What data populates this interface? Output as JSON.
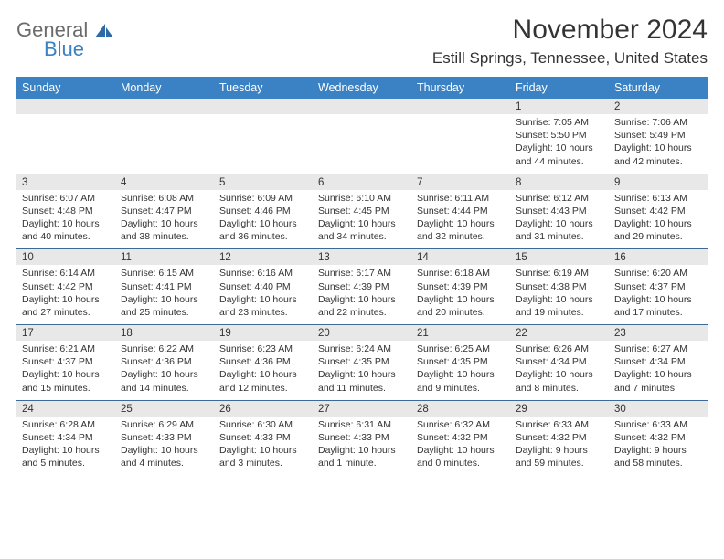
{
  "logo": {
    "word1": "General",
    "word2": "Blue"
  },
  "title": "November 2024",
  "location": "Estill Springs, Tennessee, United States",
  "colors": {
    "header_bg": "#3b82c4",
    "header_text": "#ffffff",
    "daynum_bg": "#e8e8e8",
    "row_divider": "#3b6a9a",
    "text": "#333333",
    "logo_gray": "#6b6b6b",
    "logo_blue": "#3b82c4",
    "background": "#ffffff"
  },
  "typography": {
    "title_fontsize": 30,
    "location_fontsize": 17,
    "header_fontsize": 12.5,
    "daynum_fontsize": 11.5,
    "cell_fontsize": 10.5,
    "font_family": "Arial"
  },
  "day_names": [
    "Sunday",
    "Monday",
    "Tuesday",
    "Wednesday",
    "Thursday",
    "Friday",
    "Saturday"
  ],
  "weeks": [
    {
      "nums": [
        "",
        "",
        "",
        "",
        "",
        "1",
        "2"
      ],
      "cells": [
        "",
        "",
        "",
        "",
        "",
        "Sunrise: 7:05 AM\nSunset: 5:50 PM\nDaylight: 10 hours and 44 minutes.",
        "Sunrise: 7:06 AM\nSunset: 5:49 PM\nDaylight: 10 hours and 42 minutes."
      ]
    },
    {
      "nums": [
        "3",
        "4",
        "5",
        "6",
        "7",
        "8",
        "9"
      ],
      "cells": [
        "Sunrise: 6:07 AM\nSunset: 4:48 PM\nDaylight: 10 hours and 40 minutes.",
        "Sunrise: 6:08 AM\nSunset: 4:47 PM\nDaylight: 10 hours and 38 minutes.",
        "Sunrise: 6:09 AM\nSunset: 4:46 PM\nDaylight: 10 hours and 36 minutes.",
        "Sunrise: 6:10 AM\nSunset: 4:45 PM\nDaylight: 10 hours and 34 minutes.",
        "Sunrise: 6:11 AM\nSunset: 4:44 PM\nDaylight: 10 hours and 32 minutes.",
        "Sunrise: 6:12 AM\nSunset: 4:43 PM\nDaylight: 10 hours and 31 minutes.",
        "Sunrise: 6:13 AM\nSunset: 4:42 PM\nDaylight: 10 hours and 29 minutes."
      ]
    },
    {
      "nums": [
        "10",
        "11",
        "12",
        "13",
        "14",
        "15",
        "16"
      ],
      "cells": [
        "Sunrise: 6:14 AM\nSunset: 4:42 PM\nDaylight: 10 hours and 27 minutes.",
        "Sunrise: 6:15 AM\nSunset: 4:41 PM\nDaylight: 10 hours and 25 minutes.",
        "Sunrise: 6:16 AM\nSunset: 4:40 PM\nDaylight: 10 hours and 23 minutes.",
        "Sunrise: 6:17 AM\nSunset: 4:39 PM\nDaylight: 10 hours and 22 minutes.",
        "Sunrise: 6:18 AM\nSunset: 4:39 PM\nDaylight: 10 hours and 20 minutes.",
        "Sunrise: 6:19 AM\nSunset: 4:38 PM\nDaylight: 10 hours and 19 minutes.",
        "Sunrise: 6:20 AM\nSunset: 4:37 PM\nDaylight: 10 hours and 17 minutes."
      ]
    },
    {
      "nums": [
        "17",
        "18",
        "19",
        "20",
        "21",
        "22",
        "23"
      ],
      "cells": [
        "Sunrise: 6:21 AM\nSunset: 4:37 PM\nDaylight: 10 hours and 15 minutes.",
        "Sunrise: 6:22 AM\nSunset: 4:36 PM\nDaylight: 10 hours and 14 minutes.",
        "Sunrise: 6:23 AM\nSunset: 4:36 PM\nDaylight: 10 hours and 12 minutes.",
        "Sunrise: 6:24 AM\nSunset: 4:35 PM\nDaylight: 10 hours and 11 minutes.",
        "Sunrise: 6:25 AM\nSunset: 4:35 PM\nDaylight: 10 hours and 9 minutes.",
        "Sunrise: 6:26 AM\nSunset: 4:34 PM\nDaylight: 10 hours and 8 minutes.",
        "Sunrise: 6:27 AM\nSunset: 4:34 PM\nDaylight: 10 hours and 7 minutes."
      ]
    },
    {
      "nums": [
        "24",
        "25",
        "26",
        "27",
        "28",
        "29",
        "30"
      ],
      "cells": [
        "Sunrise: 6:28 AM\nSunset: 4:34 PM\nDaylight: 10 hours and 5 minutes.",
        "Sunrise: 6:29 AM\nSunset: 4:33 PM\nDaylight: 10 hours and 4 minutes.",
        "Sunrise: 6:30 AM\nSunset: 4:33 PM\nDaylight: 10 hours and 3 minutes.",
        "Sunrise: 6:31 AM\nSunset: 4:33 PM\nDaylight: 10 hours and 1 minute.",
        "Sunrise: 6:32 AM\nSunset: 4:32 PM\nDaylight: 10 hours and 0 minutes.",
        "Sunrise: 6:33 AM\nSunset: 4:32 PM\nDaylight: 9 hours and 59 minutes.",
        "Sunrise: 6:33 AM\nSunset: 4:32 PM\nDaylight: 9 hours and 58 minutes."
      ]
    }
  ]
}
